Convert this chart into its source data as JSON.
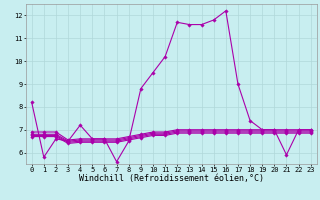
{
  "xlabel": "Windchill (Refroidissement éolien,°C)",
  "background_color": "#c8eef0",
  "grid_color": "#b0d8da",
  "line_color": "#aa00aa",
  "hours": [
    0,
    1,
    2,
    3,
    4,
    5,
    6,
    7,
    8,
    9,
    10,
    11,
    12,
    13,
    14,
    15,
    16,
    17,
    18,
    19,
    20,
    21,
    22,
    23
  ],
  "series": [
    [
      8.2,
      5.8,
      6.6,
      6.5,
      7.2,
      6.6,
      6.6,
      5.6,
      6.5,
      8.8,
      9.5,
      10.2,
      11.7,
      11.6,
      11.6,
      11.8,
      12.2,
      9.0,
      7.4,
      7.0,
      7.0,
      5.9,
      7.0,
      7.0
    ],
    [
      6.9,
      6.9,
      6.9,
      6.55,
      6.6,
      6.6,
      6.6,
      6.6,
      6.7,
      6.8,
      6.9,
      6.9,
      7.0,
      7.0,
      7.0,
      7.0,
      7.0,
      7.0,
      7.0,
      7.0,
      7.0,
      7.0,
      7.0,
      7.0
    ],
    [
      6.8,
      6.8,
      6.8,
      6.5,
      6.55,
      6.55,
      6.55,
      6.55,
      6.65,
      6.75,
      6.85,
      6.85,
      6.95,
      6.95,
      6.95,
      6.95,
      6.95,
      6.95,
      6.95,
      6.95,
      6.95,
      6.95,
      6.95,
      6.95
    ],
    [
      6.75,
      6.75,
      6.75,
      6.45,
      6.5,
      6.5,
      6.5,
      6.5,
      6.6,
      6.7,
      6.8,
      6.8,
      6.9,
      6.9,
      6.9,
      6.9,
      6.9,
      6.9,
      6.9,
      6.9,
      6.9,
      6.9,
      6.9,
      6.9
    ],
    [
      6.7,
      6.7,
      6.7,
      6.4,
      6.45,
      6.45,
      6.45,
      6.45,
      6.55,
      6.65,
      6.75,
      6.75,
      6.85,
      6.85,
      6.85,
      6.85,
      6.85,
      6.85,
      6.85,
      6.85,
      6.85,
      6.85,
      6.85,
      6.85
    ]
  ],
  "ylim": [
    5.5,
    12.5
  ],
  "yticks": [
    6,
    7,
    8,
    9,
    10,
    11,
    12
  ],
  "xticks": [
    0,
    1,
    2,
    3,
    4,
    5,
    6,
    7,
    8,
    9,
    10,
    11,
    12,
    13,
    14,
    15,
    16,
    17,
    18,
    19,
    20,
    21,
    22,
    23
  ],
  "marker": "D",
  "markersize": 1.8,
  "linewidth": 0.8,
  "tick_fontsize": 5.0,
  "label_fontsize": 6.0
}
